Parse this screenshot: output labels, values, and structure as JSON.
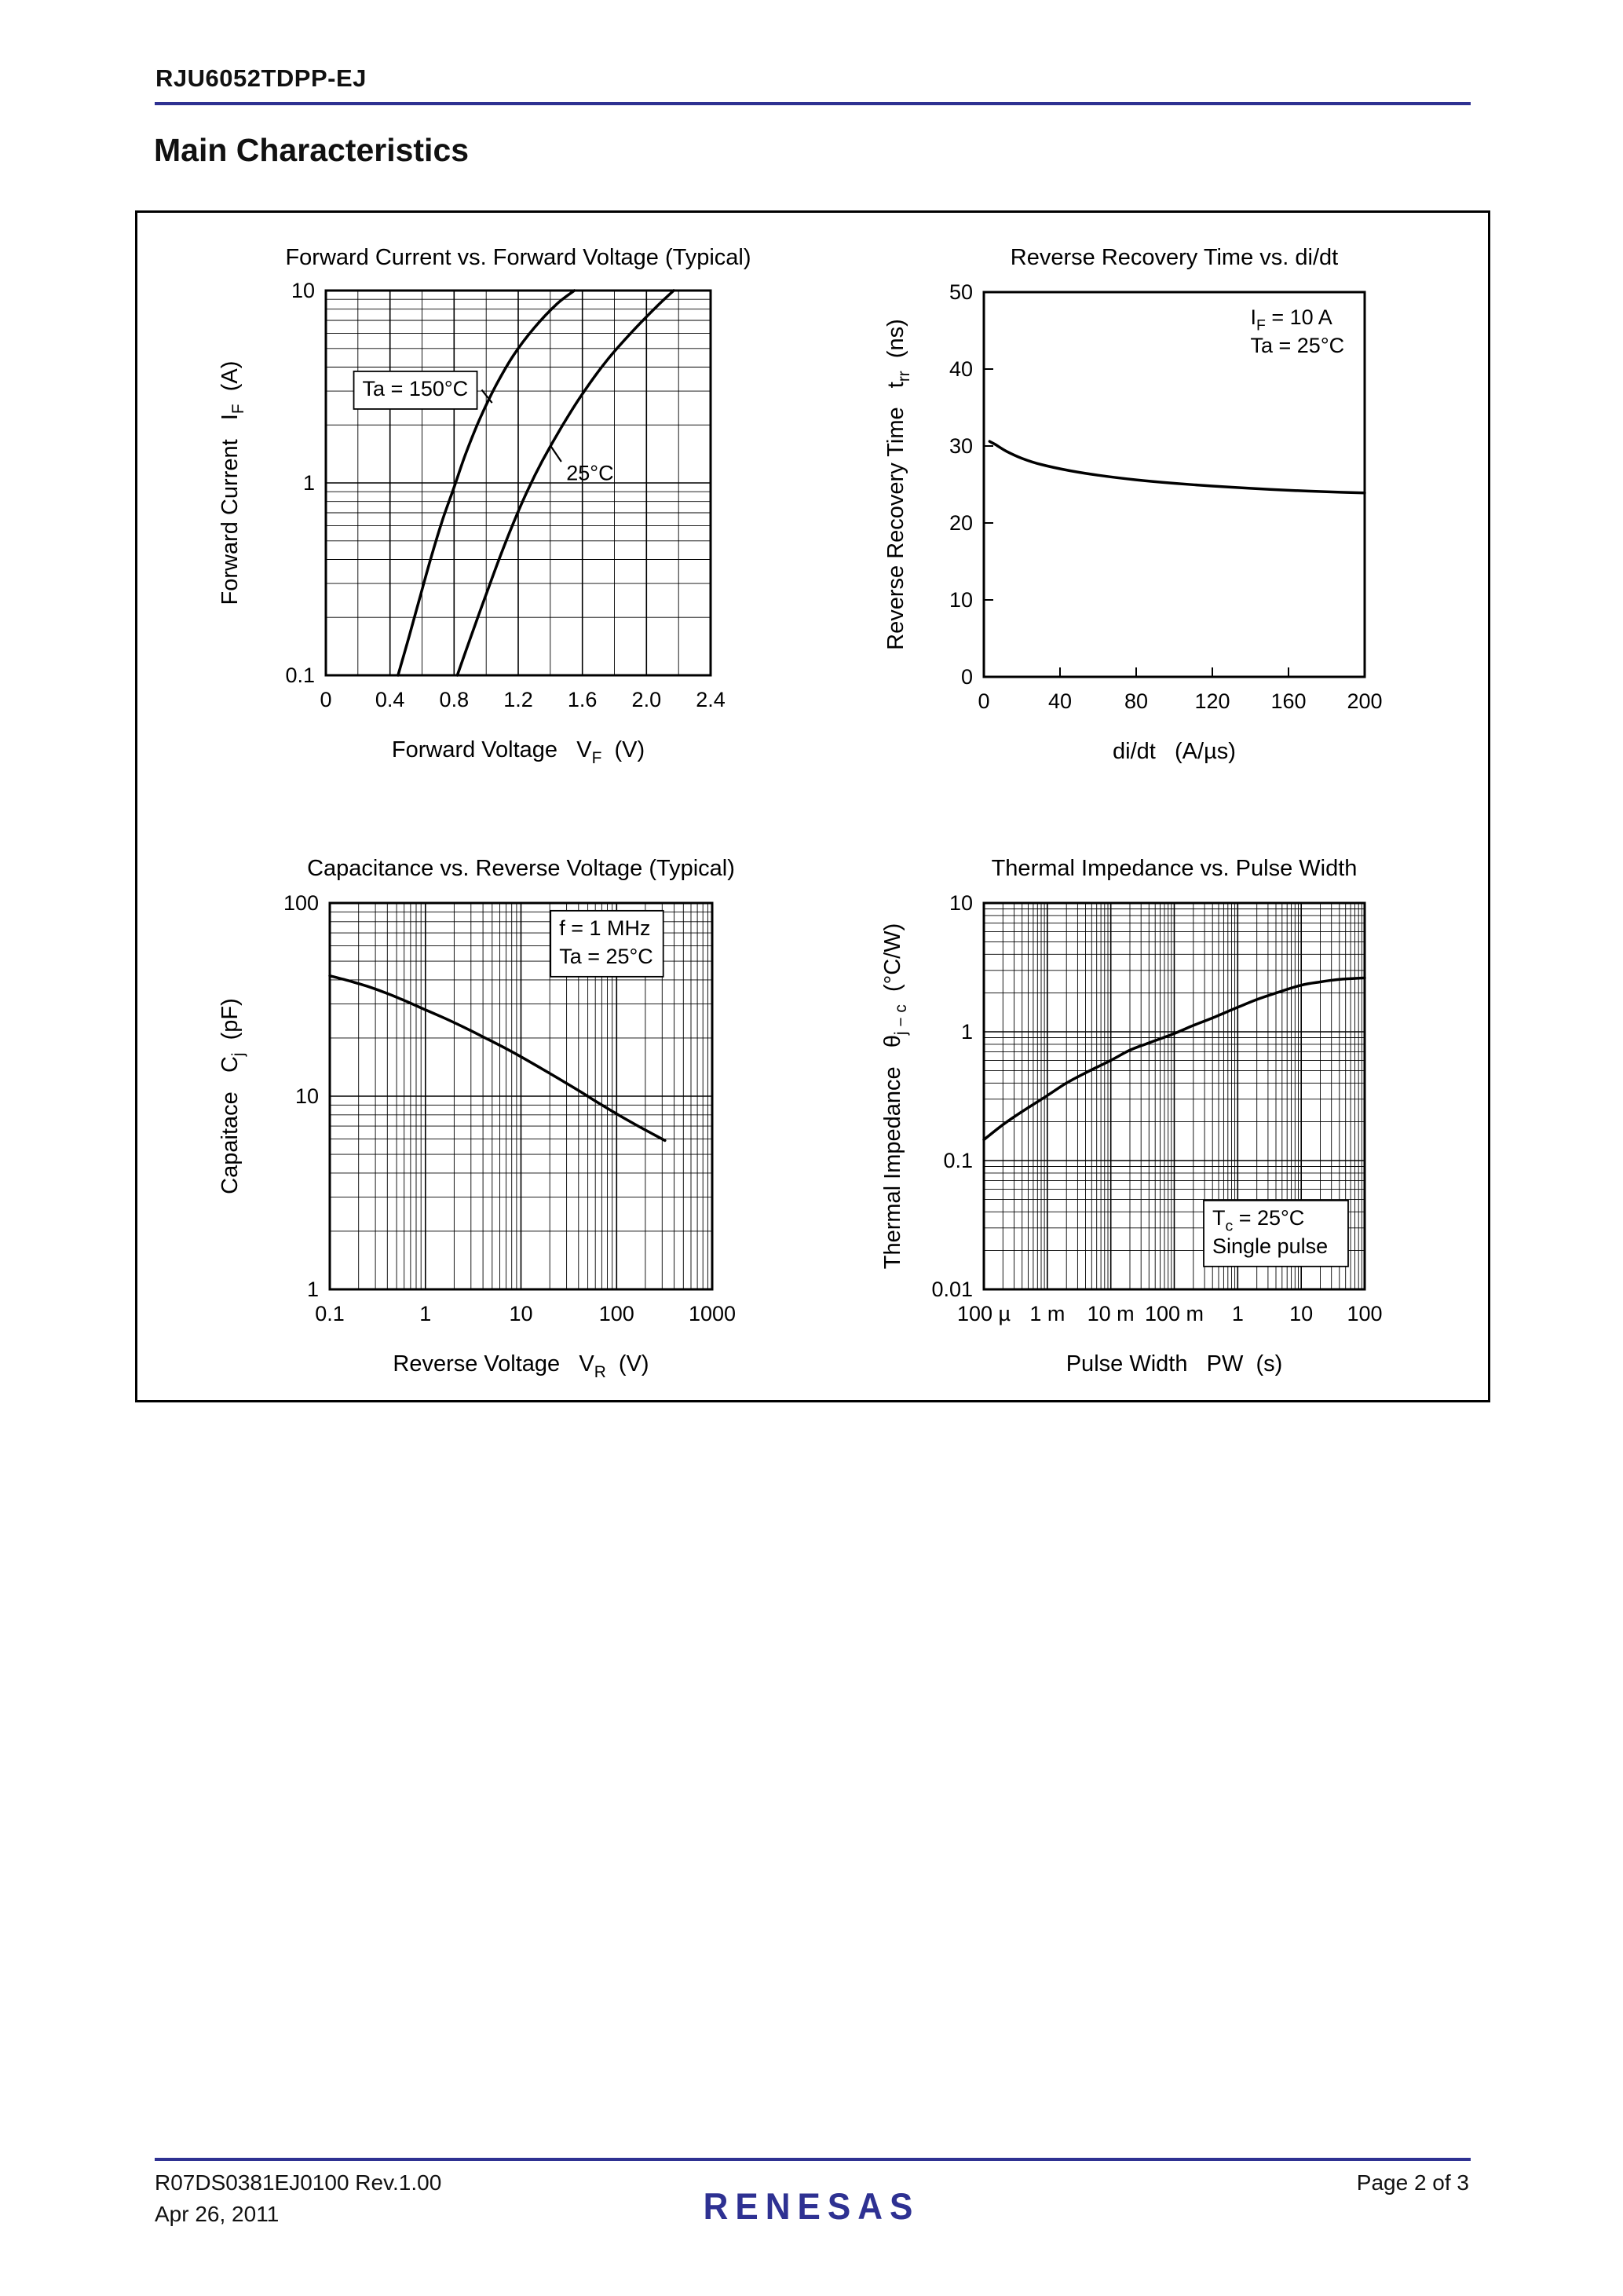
{
  "page": {
    "part_number": "RJU6052TDPP-EJ",
    "section_title": "Main Characteristics",
    "accent_color": "#2e3192",
    "footer": {
      "doc_ref": "R07DS0381EJ0100  Rev.1.00",
      "date": "Apr 26, 2011",
      "page_indicator": "Page 2 of 3",
      "logo_text": "RENESAS"
    }
  },
  "chart_data": [
    {
      "type": "line",
      "title": "Forward Current vs. Forward Voltage (Typical)",
      "xlabel": "Forward Voltage   V~F~  (V)",
      "ylabel": "Forward Current   I~F~  (A)",
      "grid": "full",
      "xaxis": {
        "scale": "linear",
        "min": 0,
        "max": 2.4,
        "grid_step": 0.2,
        "major_step": 0.4,
        "ticks": [
          0,
          0.4,
          0.8,
          1.2,
          1.6,
          2.0,
          2.4
        ],
        "tick_labels": [
          "0",
          "0.4",
          "0.8",
          "1.2",
          "1.6",
          "2.0",
          "2.4"
        ]
      },
      "yaxis": {
        "scale": "log",
        "min": 0.1,
        "max": 10,
        "ticks": [
          0.1,
          1,
          10
        ],
        "tick_labels": [
          "0.1",
          "1",
          "10"
        ]
      },
      "series": [
        {
          "name": "Ta = 150°C",
          "points": [
            [
              0.45,
              0.1
            ],
            [
              0.52,
              0.16
            ],
            [
              0.59,
              0.26
            ],
            [
              0.66,
              0.42
            ],
            [
              0.73,
              0.65
            ],
            [
              0.8,
              0.95
            ],
            [
              0.87,
              1.4
            ],
            [
              0.96,
              2.15
            ],
            [
              1.06,
              3.2
            ],
            [
              1.17,
              4.6
            ],
            [
              1.3,
              6.4
            ],
            [
              1.44,
              8.5
            ],
            [
              1.55,
              10
            ]
          ]
        },
        {
          "name": "25°C",
          "points": [
            [
              0.82,
              0.1
            ],
            [
              0.9,
              0.155
            ],
            [
              0.99,
              0.25
            ],
            [
              1.08,
              0.4
            ],
            [
              1.17,
              0.62
            ],
            [
              1.26,
              0.92
            ],
            [
              1.35,
              1.3
            ],
            [
              1.47,
              1.95
            ],
            [
              1.6,
              2.9
            ],
            [
              1.75,
              4.3
            ],
            [
              1.91,
              6.1
            ],
            [
              2.06,
              8.2
            ],
            [
              2.17,
              10
            ]
          ]
        }
      ],
      "annotations": [
        {
          "text_lines": [
            "Ta = 150°C"
          ],
          "fx": 0.095,
          "fy": 0.21,
          "box": true,
          "leader": [
            0.405,
            0.258,
            0.432,
            0.292
          ]
        },
        {
          "text_lines": [
            "25°C"
          ],
          "fx": 0.625,
          "fy": 0.43,
          "box": false,
          "leader": [
            0.612,
            0.445,
            0.583,
            0.402
          ]
        }
      ]
    },
    {
      "type": "line",
      "title": "Reverse Recovery Time vs. di/dt",
      "xlabel": "di/dt   (A/µs)",
      "ylabel": "Reverse Recovery Time   t~rr~  (ns)",
      "grid": "ticks",
      "xaxis": {
        "scale": "linear",
        "min": 0,
        "max": 200,
        "ticks": [
          0,
          40,
          80,
          120,
          160,
          200
        ],
        "tick_labels": [
          "0",
          "40",
          "80",
          "120",
          "160",
          "200"
        ]
      },
      "yaxis": {
        "scale": "linear",
        "min": 0,
        "max": 50,
        "ticks": [
          0,
          10,
          20,
          30,
          40,
          50
        ],
        "tick_labels": [
          "0",
          "10",
          "20",
          "30",
          "40",
          "50"
        ]
      },
      "series": [
        {
          "name": "trr",
          "points": [
            [
              3,
              30.6
            ],
            [
              6,
              30.2
            ],
            [
              12,
              29.3
            ],
            [
              20,
              28.4
            ],
            [
              30,
              27.6
            ],
            [
              45,
              26.8
            ],
            [
              60,
              26.2
            ],
            [
              80,
              25.6
            ],
            [
              100,
              25.15
            ],
            [
              120,
              24.8
            ],
            [
              140,
              24.5
            ],
            [
              160,
              24.25
            ],
            [
              180,
              24.05
            ],
            [
              200,
              23.9
            ]
          ]
        }
      ],
      "annotations": [
        {
          "text_lines": [
            "I~F~ = 10 A",
            "Ta = 25°C"
          ],
          "fx": 0.7,
          "fy": 0.02,
          "box": false
        }
      ]
    },
    {
      "type": "line",
      "title": "Capacitance vs. Reverse Voltage (Typical)",
      "xlabel": "Reverse Voltage   V~R~  (V)",
      "ylabel": "Capaitace   C~j~  (pF)",
      "grid": "full",
      "xaxis": {
        "scale": "log",
        "min": 0.1,
        "max": 1000,
        "ticks": [
          0.1,
          1,
          10,
          100,
          1000
        ],
        "tick_labels": [
          "0.1",
          "1",
          "10",
          "100",
          "1000"
        ]
      },
      "yaxis": {
        "scale": "log",
        "min": 1,
        "max": 100,
        "ticks": [
          1,
          10,
          100
        ],
        "tick_labels": [
          "1",
          "10",
          "100"
        ]
      },
      "series": [
        {
          "name": "Cj",
          "points": [
            [
              0.1,
              42
            ],
            [
              0.16,
              39.5
            ],
            [
              0.25,
              37
            ],
            [
              0.4,
              34
            ],
            [
              0.63,
              31
            ],
            [
              1,
              28
            ],
            [
              1.6,
              25.3
            ],
            [
              2.5,
              22.8
            ],
            [
              4,
              20.3
            ],
            [
              6.3,
              18.1
            ],
            [
              10,
              16
            ],
            [
              16,
              14
            ],
            [
              25,
              12.3
            ],
            [
              40,
              10.7
            ],
            [
              63,
              9.3
            ],
            [
              100,
              8.1
            ],
            [
              160,
              7.1
            ],
            [
              250,
              6.3
            ],
            [
              320,
              5.9
            ]
          ]
        }
      ],
      "annotations": [
        {
          "text_lines": [
            "f = 1 MHz",
            "Ta = 25°C"
          ],
          "fx": 0.6,
          "fy": 0.02,
          "box": true
        }
      ]
    },
    {
      "type": "line",
      "title": "Thermal Impedance vs. Pulse Width",
      "xlabel": "Pulse Width   PW  (s)",
      "ylabel": "Thermal Impedance   θ~j − c~  (°C/W)",
      "grid": "full",
      "xaxis": {
        "scale": "log",
        "min": 0.0001,
        "max": 100,
        "ticks": [
          0.0001,
          0.001,
          0.01,
          0.1,
          1,
          10,
          100
        ],
        "tick_labels": [
          "100 µ",
          "1 m",
          "10 m",
          "100 m",
          "1",
          "10",
          "100"
        ]
      },
      "yaxis": {
        "scale": "log",
        "min": 0.01,
        "max": 10,
        "ticks": [
          0.01,
          0.1,
          1,
          10
        ],
        "tick_labels": [
          "0.01",
          "0.1",
          "1",
          "10"
        ]
      },
      "series": [
        {
          "name": "Zth(j-c)",
          "points": [
            [
              0.0001,
              0.145
            ],
            [
              0.0002,
              0.19
            ],
            [
              0.0004,
              0.24
            ],
            [
              0.001,
              0.32
            ],
            [
              0.002,
              0.4
            ],
            [
              0.004,
              0.48
            ],
            [
              0.01,
              0.6
            ],
            [
              0.02,
              0.72
            ],
            [
              0.04,
              0.82
            ],
            [
              0.1,
              0.97
            ],
            [
              0.2,
              1.12
            ],
            [
              0.4,
              1.28
            ],
            [
              1,
              1.55
            ],
            [
              2,
              1.78
            ],
            [
              4,
              2.0
            ],
            [
              10,
              2.3
            ],
            [
              20,
              2.44
            ],
            [
              40,
              2.55
            ],
            [
              100,
              2.62
            ]
          ]
        }
      ],
      "annotations": [
        {
          "text_lines": [
            "T~c~ = 25°C",
            "Single pulse"
          ],
          "fx": 0.6,
          "fy": 0.77,
          "box": true
        }
      ]
    }
  ]
}
